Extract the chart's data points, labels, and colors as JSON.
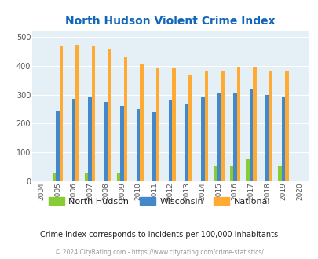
{
  "title": "North Hudson Violent Crime Index",
  "years": [
    2004,
    2005,
    2006,
    2007,
    2008,
    2009,
    2010,
    2011,
    2012,
    2013,
    2014,
    2015,
    2016,
    2017,
    2018,
    2019,
    2020
  ],
  "north_hudson": [
    0,
    30,
    0,
    30,
    0,
    30,
    0,
    0,
    0,
    0,
    0,
    55,
    52,
    80,
    0,
    53,
    0
  ],
  "wisconsin": [
    0,
    245,
    285,
    292,
    274,
    260,
    250,
    240,
    281,
    270,
    292,
    306,
    306,
    317,
    299,
    294,
    0
  ],
  "national": [
    0,
    470,
    474,
    468,
    456,
    433,
    406,
    390,
    390,
    368,
    379,
    384,
    398,
    394,
    382,
    380,
    0
  ],
  "north_hudson_color": "#88cc33",
  "wisconsin_color": "#4488cc",
  "national_color": "#ffaa33",
  "plot_bg": "#e4f0f5",
  "title_color": "#1166bb",
  "yticks": [
    0,
    100,
    200,
    300,
    400,
    500
  ],
  "subtitle": "Crime Index corresponds to incidents per 100,000 inhabitants",
  "footer": "© 2024 CityRating.com - https://www.cityrating.com/crime-statistics/",
  "legend_labels": [
    "North Hudson",
    "Wisconsin",
    "National"
  ]
}
